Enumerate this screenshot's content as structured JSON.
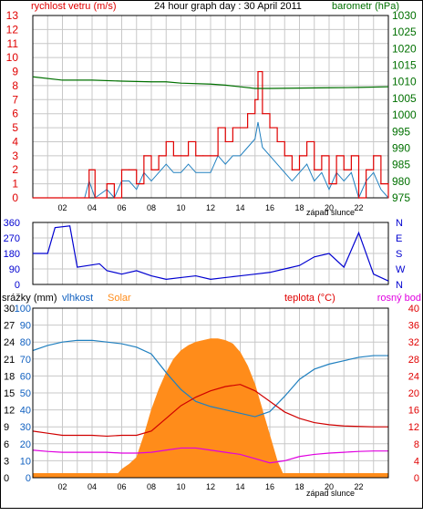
{
  "colors": {
    "wind": "#e00000",
    "gust_alt": "#2080c0",
    "barometer": "#007000",
    "direction": "#0000d0",
    "humidity": "#2080c0",
    "solar": "#ff8c1a",
    "rain": "#0050c0",
    "temperature": "#d00000",
    "dewpoint": "#e000e0",
    "axis_blue": "#1060c0",
    "axis_red": "#e00000",
    "axis_green": "#007000",
    "grid": "#c8c8c8",
    "frame": "#000000"
  },
  "panel_top": {
    "header_left": "rychlost vetru (m/s)",
    "title": "24 hour graph day : 30 April 2011",
    "header_right": "barometr (hPa)",
    "left_ticks": [
      "0",
      "1",
      "2",
      "3",
      "4",
      "5",
      "6",
      "7",
      "8",
      "9",
      "10",
      "11",
      "12",
      "13"
    ],
    "right_ticks": [
      "975",
      "980",
      "985",
      "990",
      "995",
      "1000",
      "1005",
      "1010",
      "1015",
      "1020",
      "1025",
      "1030"
    ],
    "x_ticks": [
      "02",
      "04",
      "06",
      "08",
      "10",
      "12",
      "14",
      "16",
      "18",
      "20",
      "22"
    ],
    "sunset_label": "západ slunce"
  },
  "panel_mid": {
    "left_ticks": [
      "0",
      "90",
      "180",
      "270",
      "360"
    ],
    "right_ticks": [
      "N",
      "E",
      "S",
      "W",
      "N"
    ]
  },
  "panel_bottom": {
    "legend_rain": "srážky (mm)",
    "legend_humidity": "vlhkost",
    "legend_solar": "Solar",
    "legend_temp": "teplota (°C)",
    "legend_dew": "rosný bod",
    "rain_ticks": [
      "0",
      "3",
      "6",
      "9",
      "12",
      "15",
      "18",
      "21",
      "24",
      "27",
      "30"
    ],
    "humidity_ticks": [
      "0",
      "10",
      "20",
      "30",
      "40",
      "50",
      "60",
      "70",
      "80",
      "90",
      "100"
    ],
    "temp_ticks": [
      "0",
      "4",
      "8",
      "12",
      "16",
      "20",
      "24",
      "28",
      "32",
      "36",
      "40"
    ],
    "x_ticks": [
      "02",
      "04",
      "06",
      "08",
      "10",
      "12",
      "14",
      "16",
      "18",
      "20",
      "22"
    ],
    "sunset_label": "západ slunce"
  },
  "chart_data": [
    {
      "type": "line",
      "title": "24 hour graph day : 30 April 2011",
      "x_unit": "hour of day",
      "ylim_left": [
        0,
        13
      ],
      "ylim_right": [
        975,
        1030
      ],
      "grid": true,
      "series": [
        {
          "name": "rychlost vetru (m/s)",
          "axis": "left",
          "x": [
            0,
            3.5,
            3.8,
            4.2,
            5.0,
            5.5,
            6.0,
            6.5,
            7.0,
            7.5,
            8.0,
            8.5,
            9.0,
            9.5,
            10.0,
            10.5,
            11.0,
            11.5,
            12.0,
            12.5,
            13.0,
            13.5,
            14.0,
            14.5,
            15.0,
            15.2,
            15.5,
            16.0,
            16.5,
            17.0,
            17.5,
            18.0,
            18.5,
            19.0,
            19.5,
            20.0,
            20.5,
            21.0,
            21.5,
            22.0,
            22.5,
            23.0,
            23.5,
            24.0
          ],
          "y": [
            0,
            0,
            2,
            0,
            1,
            0,
            2,
            2,
            1,
            3,
            2,
            3,
            4,
            3,
            3,
            4,
            3,
            3,
            3,
            5,
            4,
            5,
            5,
            6,
            7,
            9,
            6,
            5,
            4,
            3,
            2,
            3,
            4,
            2,
            3,
            1,
            3,
            2,
            3,
            0,
            2,
            3,
            1,
            0
          ]
        },
        {
          "name": "barometr (hPa)",
          "axis": "right",
          "x": [
            0,
            2,
            4,
            6,
            8,
            9,
            10,
            12,
            13,
            14,
            15,
            16,
            18,
            20,
            22,
            24
          ],
          "y": [
            1011.5,
            1010.5,
            1010.5,
            1010.2,
            1010.0,
            1010.0,
            1009.6,
            1009.3,
            1009.0,
            1008.5,
            1008.0,
            1008.0,
            1008.1,
            1008.2,
            1008.3,
            1008.5
          ]
        }
      ]
    },
    {
      "type": "line",
      "x_unit": "hour of day",
      "ylim": [
        0,
        360
      ],
      "series": [
        {
          "name": "wind direction",
          "x": [
            0,
            1,
            1.5,
            2.5,
            3,
            4.5,
            5,
            6,
            7,
            8,
            9,
            10,
            11,
            12,
            13,
            14,
            15,
            16,
            17,
            18,
            19,
            20,
            21,
            22,
            23,
            24
          ],
          "y": [
            180,
            180,
            330,
            340,
            100,
            120,
            80,
            60,
            80,
            50,
            30,
            40,
            50,
            30,
            40,
            50,
            60,
            70,
            90,
            110,
            160,
            180,
            100,
            300,
            60,
            20
          ]
        }
      ]
    },
    {
      "type": "line",
      "x_unit": "hour of day",
      "ylim_left_rain": [
        0,
        30
      ],
      "ylim_humidity": [
        0,
        100
      ],
      "ylim_right_temp": [
        0,
        40
      ],
      "series": [
        {
          "name": "vlhkost",
          "axis": "humidity",
          "x": [
            0,
            1,
            2,
            3,
            4,
            5,
            6,
            7,
            8,
            9,
            10,
            11,
            12,
            13,
            14,
            15,
            16,
            17,
            18,
            19,
            20,
            21,
            22,
            23,
            24
          ],
          "y": [
            75,
            78,
            80,
            81,
            81,
            80,
            79,
            77,
            73,
            62,
            52,
            45,
            42,
            40,
            38,
            36,
            39,
            48,
            58,
            64,
            67,
            69,
            71,
            72,
            72
          ]
        },
        {
          "name": "teplota (°C)",
          "axis": "temp",
          "x": [
            0,
            1,
            2,
            3,
            4,
            5,
            6,
            7,
            8,
            9,
            10,
            11,
            12,
            13,
            14,
            15,
            16,
            17,
            18,
            19,
            20,
            21,
            22,
            23,
            24
          ],
          "y": [
            11,
            10.5,
            10,
            10,
            10,
            9.8,
            10,
            10,
            11,
            14,
            17,
            19,
            20.5,
            21.5,
            22,
            20.5,
            18,
            15.5,
            14,
            13,
            12.5,
            12.2,
            12.1,
            12,
            12
          ]
        },
        {
          "name": "rosný bod",
          "axis": "temp",
          "x": [
            0,
            1,
            2,
            3,
            4,
            5,
            6,
            7,
            8,
            9,
            10,
            11,
            12,
            13,
            14,
            15,
            16,
            17,
            18,
            19,
            20,
            21,
            22,
            23,
            24
          ],
          "y": [
            6.5,
            6.2,
            6,
            6,
            6,
            6,
            5.8,
            5.8,
            6,
            6.5,
            7,
            7,
            6.5,
            6,
            5.5,
            4.5,
            3.5,
            4,
            5,
            5.5,
            5.8,
            6,
            6.2,
            6.3,
            6.3
          ]
        },
        {
          "name": "Solar",
          "axis": "humidity_scale_percent",
          "x": [
            0,
            5.5,
            6.0,
            6.5,
            7.0,
            7.5,
            8.0,
            8.5,
            9.0,
            9.5,
            10.0,
            10.5,
            11.0,
            11.5,
            12.0,
            12.5,
            13.0,
            13.5,
            14.0,
            14.5,
            15.0,
            15.5,
            16.0,
            16.5,
            17.0,
            24
          ],
          "y": [
            0,
            0,
            5,
            8,
            12,
            25,
            40,
            52,
            62,
            70,
            75,
            78,
            80,
            81,
            82,
            82,
            81,
            79,
            74,
            66,
            55,
            40,
            25,
            10,
            0,
            0
          ]
        },
        {
          "name": "srážky (mm)",
          "axis": "rain",
          "x": [
            0,
            24
          ],
          "y": [
            0,
            0
          ]
        }
      ]
    }
  ]
}
